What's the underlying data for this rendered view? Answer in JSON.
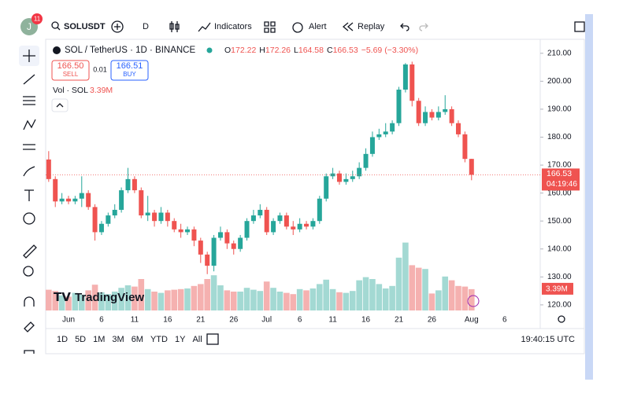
{
  "toolbar": {
    "avatar": "J",
    "badge": "11",
    "symbol": "SOLUSDT",
    "interval": "D",
    "indicators": "Indicators",
    "alert": "Alert",
    "replay": "Replay"
  },
  "legend": {
    "name": "SOL / TetherUS · 1D · BINANCE",
    "o": "O",
    "h": "H",
    "l": "L",
    "c": "C",
    "change": "−5.69 (−3.30%)"
  },
  "trade": {
    "sell_price": "166.50",
    "sell": "SELL",
    "spread": "0.01",
    "buy_price": "166.51",
    "buy": "BUY"
  },
  "volume_legend": "Vol · SOL",
  "logo": "TradingView",
  "countdown": "04:19:46",
  "bottom_bar": {
    "ranges": [
      "1D",
      "5D",
      "1M",
      "3M",
      "6M",
      "YTD",
      "1Y",
      "All"
    ],
    "clock": "19:40:15 UTC"
  },
  "chart_data": {
    "type": "candlestick",
    "categories": [
      null,
      null,
      null,
      "Jun",
      null,
      null,
      null,
      null,
      "6",
      null,
      null,
      null,
      null,
      "11",
      null,
      null,
      null,
      null,
      "16",
      null,
      null,
      null,
      null,
      "21",
      null,
      null,
      null,
      null,
      "26",
      null,
      null,
      null,
      null,
      "Jul",
      null,
      null,
      null,
      null,
      "6",
      null,
      null,
      null,
      null,
      "11",
      null,
      null,
      null,
      null,
      "16",
      null,
      null,
      null,
      null,
      "21",
      null,
      null,
      null,
      null,
      "26",
      null,
      null,
      null,
      null,
      null,
      "Aug",
      null,
      null,
      null,
      null,
      "6"
    ],
    "open": [
      172,
      165,
      157,
      158,
      157,
      158,
      160,
      155,
      146,
      149,
      152,
      154,
      161,
      165,
      161,
      152,
      153,
      150,
      153,
      150,
      147,
      146,
      147,
      143,
      138,
      134,
      144,
      146,
      142,
      140,
      144,
      150,
      152,
      154,
      146,
      150,
      152,
      148,
      147,
      149,
      148,
      150,
      158,
      166,
      167,
      164,
      165,
      166,
      169,
      174,
      180,
      181,
      182,
      185,
      197,
      206,
      193,
      185,
      189,
      187,
      189,
      190,
      185,
      181,
      172.22,
      null,
      null,
      null,
      null,
      null
    ],
    "high": [
      175,
      166,
      160,
      159,
      159,
      166,
      161,
      156,
      150,
      153,
      156,
      162,
      169,
      166,
      162,
      159,
      154,
      155,
      154,
      151,
      149,
      148,
      148,
      144,
      139,
      145,
      148,
      147,
      143,
      145,
      151,
      154,
      156,
      155,
      151,
      153,
      153,
      150,
      151,
      150,
      151,
      159,
      167,
      169,
      168,
      167,
      168,
      171,
      176,
      182,
      183,
      185,
      186,
      198,
      206.5,
      207,
      194,
      191,
      190,
      191,
      195,
      191,
      186,
      182,
      172.26,
      null,
      null,
      null,
      null,
      null
    ],
    "low": [
      164,
      155,
      156,
      156,
      156,
      155,
      154,
      143,
      145,
      148,
      151,
      153,
      160,
      160,
      151,
      150,
      148,
      149,
      148,
      146,
      144,
      145,
      141,
      135,
      131,
      132,
      143,
      140,
      138,
      139,
      143,
      149,
      151,
      145,
      145,
      149,
      147,
      145,
      146,
      147,
      147,
      149,
      157,
      165,
      163,
      163,
      164,
      165,
      168,
      173,
      179,
      180,
      181,
      184,
      196,
      191,
      184,
      184,
      186,
      186,
      188,
      184,
      180,
      171,
      164.58,
      null,
      null,
      null,
      null,
      null
    ],
    "close": [
      165,
      157,
      158,
      157,
      158,
      160,
      155,
      146,
      149,
      152,
      154,
      161,
      165,
      161,
      152,
      153,
      150,
      153,
      150,
      147,
      146,
      147,
      143,
      138,
      134,
      144,
      146,
      142,
      140,
      144,
      150,
      152,
      154,
      146,
      150,
      152,
      148,
      147,
      149,
      148,
      150,
      158,
      166,
      167,
      164,
      165,
      166,
      169,
      174,
      180,
      181,
      182,
      185,
      197,
      206,
      193,
      185,
      189,
      187,
      189,
      190,
      185,
      181,
      172.22,
      166.53,
      null,
      null,
      null,
      null,
      null
    ],
    "volume": [
      3.3,
      3.1,
      2.4,
      2.2,
      2.8,
      2.5,
      3.2,
      4.1,
      2.9,
      2.6,
      3.0,
      3.6,
      4.0,
      3.8,
      5.0,
      3.4,
      3.0,
      2.8,
      3.2,
      3.3,
      3.4,
      3.5,
      3.9,
      4.2,
      5.0,
      5.6,
      4.0,
      3.2,
      3.0,
      3.0,
      3.6,
      3.3,
      3.1,
      4.6,
      3.6,
      3.0,
      2.8,
      2.6,
      3.4,
      3.2,
      3.5,
      4.2,
      4.9,
      3.4,
      2.9,
      2.8,
      3.1,
      4.8,
      5.3,
      5.0,
      4.2,
      3.5,
      3.9,
      8.4,
      10.8,
      7.2,
      6.8,
      6.6,
      2.7,
      3.2,
      5.4,
      4.8,
      3.9,
      3.8,
      3.39,
      null,
      null,
      null,
      null,
      null
    ],
    "last_volume_label": "3.39M",
    "up_color": "#26a69a",
    "down_color": "#ef5350",
    "up_volume_color": "#a3d9d3",
    "down_volume_color": "#f5b1b0",
    "ylim": [
      118,
      215
    ],
    "yticks": [
      {
        "value": 120,
        "label": "120.00"
      },
      {
        "value": 130,
        "label": "130.00"
      },
      {
        "value": 140,
        "label": "140.00"
      },
      {
        "value": 150,
        "label": "150.00"
      },
      {
        "value": 160,
        "label": "160.00"
      },
      {
        "value": 170,
        "label": "170.00"
      },
      {
        "value": 180,
        "label": "180.00"
      },
      {
        "value": 190,
        "label": "190.00"
      },
      {
        "value": 200,
        "label": "200.00"
      },
      {
        "value": 210,
        "label": "210.00"
      }
    ],
    "volume_ylim": [
      0,
      15
    ]
  }
}
